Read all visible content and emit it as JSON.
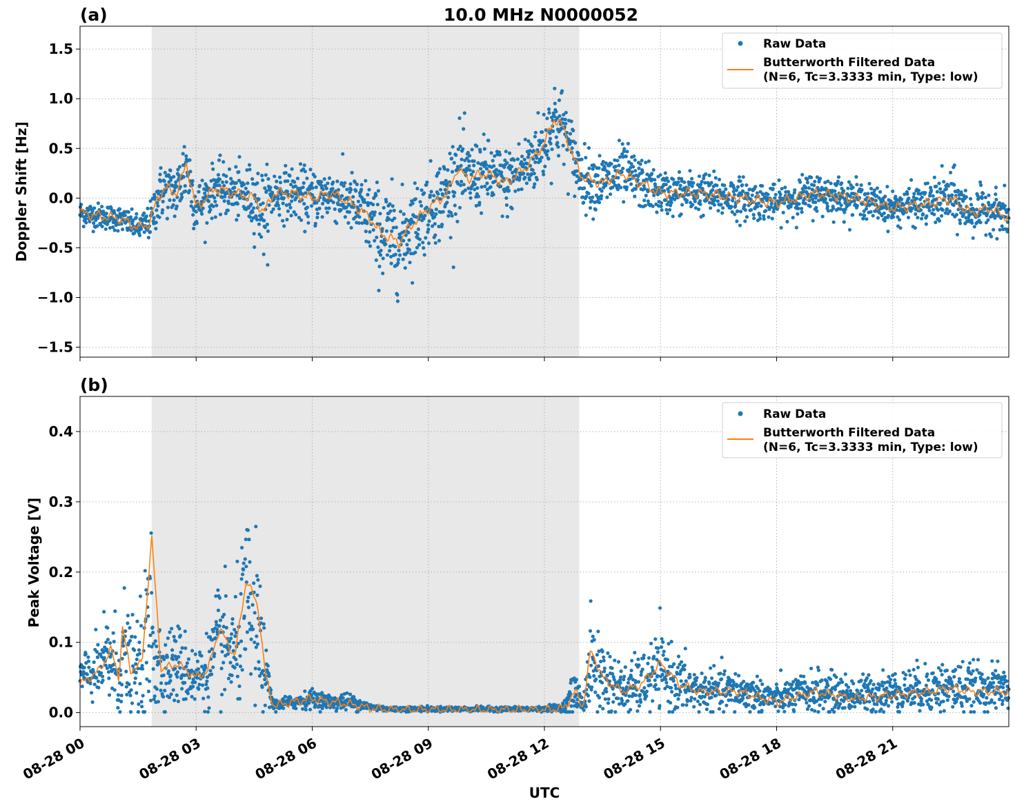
{
  "chart_data": [
    {
      "type": "scatter",
      "panel_label": "(a)",
      "title": "10.0 MHz N0000052",
      "xlabel": "",
      "ylabel": "Doppler Shift [Hz]",
      "x_range_hours": [
        0,
        24
      ],
      "ylim": [
        -1.6,
        1.73
      ],
      "yticks": [
        -1.5,
        -1.0,
        -0.5,
        0.0,
        0.5,
        1.0,
        1.5
      ],
      "ytick_labels": [
        "−1.5",
        "−1.0",
        "−0.5",
        "0.0",
        "0.5",
        "1.0",
        "1.5"
      ],
      "shaded_region_hours": [
        1.85,
        12.9
      ],
      "grid": true,
      "legend_position": "top-right",
      "series": [
        {
          "name": "Raw Data",
          "kind": "scatter",
          "color": "#1f77b4",
          "x_hours": [
            0,
            0.5,
            1.0,
            1.5,
            1.8,
            2.0,
            2.2,
            2.5,
            2.75,
            3.0,
            3.5,
            4.0,
            4.5,
            4.75,
            5.0,
            5.5,
            6.0,
            6.5,
            7.0,
            7.5,
            7.75,
            8.0,
            8.25,
            8.5,
            9.0,
            9.5,
            9.75,
            10.0,
            10.5,
            11.0,
            11.5,
            12.0,
            12.25,
            12.5,
            12.75,
            13.0,
            13.5,
            14.0,
            14.5,
            15.0,
            16.0,
            17.0,
            18.0,
            19.0,
            20.0,
            21.0,
            22.0,
            22.5,
            23.0,
            23.5,
            24.0
          ],
          "center": [
            -0.15,
            -0.18,
            -0.2,
            -0.3,
            -0.25,
            0.0,
            0.1,
            0.05,
            0.35,
            -0.1,
            0.1,
            0.05,
            0.0,
            -0.15,
            0.05,
            0.05,
            0.0,
            0.05,
            -0.05,
            -0.2,
            -0.35,
            -0.4,
            -0.45,
            -0.3,
            -0.1,
            0.05,
            0.3,
            0.2,
            0.25,
            0.15,
            0.3,
            0.55,
            0.8,
            0.7,
            0.4,
            0.2,
            0.15,
            0.25,
            0.15,
            0.05,
            0.05,
            0.0,
            -0.05,
            0.05,
            0.0,
            -0.1,
            -0.05,
            0.0,
            -0.15,
            -0.1,
            -0.2
          ],
          "spread": [
            0.15,
            0.15,
            0.15,
            0.15,
            0.2,
            0.35,
            0.3,
            0.35,
            0.5,
            0.3,
            0.3,
            0.3,
            0.4,
            0.5,
            0.3,
            0.3,
            0.35,
            0.3,
            0.35,
            0.45,
            0.55,
            0.6,
            0.55,
            0.5,
            0.45,
            0.5,
            0.55,
            0.45,
            0.4,
            0.4,
            0.4,
            0.45,
            0.5,
            0.45,
            0.4,
            0.35,
            0.35,
            0.35,
            0.3,
            0.25,
            0.25,
            0.25,
            0.2,
            0.25,
            0.2,
            0.2,
            0.25,
            0.35,
            0.25,
            0.25,
            0.25
          ]
        },
        {
          "name": "Butterworth Filtered Data\n(N=6, Tc=3.3333 min, Type: low)",
          "kind": "line",
          "color": "#ff7f0e",
          "x_hours": [
            0,
            0.5,
            1.0,
            1.5,
            1.8,
            2.0,
            2.2,
            2.5,
            2.75,
            3.0,
            3.5,
            4.0,
            4.5,
            4.75,
            5.0,
            5.5,
            6.0,
            6.5,
            7.0,
            7.5,
            7.75,
            8.0,
            8.25,
            8.5,
            9.0,
            9.5,
            9.75,
            10.0,
            10.5,
            11.0,
            11.5,
            12.0,
            12.25,
            12.5,
            12.75,
            13.0,
            13.5,
            14.0,
            14.5,
            15.0,
            16.0,
            17.0,
            18.0,
            19.0,
            20.0,
            21.0,
            22.0,
            22.5,
            23.0,
            23.5,
            24.0
          ],
          "values": [
            -0.15,
            -0.18,
            -0.2,
            -0.3,
            -0.25,
            0.0,
            0.1,
            0.05,
            0.35,
            -0.1,
            0.1,
            0.05,
            0.0,
            -0.15,
            0.05,
            0.05,
            0.0,
            0.05,
            -0.05,
            -0.2,
            -0.35,
            -0.4,
            -0.45,
            -0.3,
            -0.1,
            0.05,
            0.3,
            0.2,
            0.25,
            0.15,
            0.3,
            0.55,
            0.8,
            0.7,
            0.4,
            0.2,
            0.15,
            0.25,
            0.15,
            0.05,
            0.05,
            0.0,
            -0.05,
            0.05,
            0.0,
            -0.1,
            -0.05,
            0.0,
            -0.15,
            -0.1,
            -0.2
          ]
        }
      ]
    },
    {
      "type": "scatter",
      "panel_label": "(b)",
      "title": "",
      "xlabel": "UTC",
      "ylabel": "Peak Voltage [V]",
      "x_range_hours": [
        0,
        24
      ],
      "ylim": [
        -0.02,
        0.45
      ],
      "yticks": [
        0.0,
        0.1,
        0.2,
        0.3,
        0.4
      ],
      "ytick_labels": [
        "0.0",
        "0.1",
        "0.2",
        "0.3",
        "0.4"
      ],
      "shaded_region_hours": [
        1.85,
        12.9
      ],
      "grid": true,
      "legend_position": "top-right",
      "xticks_hours": [
        0,
        3,
        6,
        9,
        12,
        15,
        18,
        21
      ],
      "xtick_labels": [
        "08-28 00",
        "08-28 03",
        "08-28 06",
        "08-28 09",
        "08-28 12",
        "08-28 15",
        "08-28 18",
        "08-28 21"
      ],
      "series": [
        {
          "name": "Raw Data",
          "kind": "scatter",
          "color": "#1f77b4",
          "x_hours": [
            0,
            0.5,
            0.8,
            1.0,
            1.1,
            1.3,
            1.6,
            1.85,
            2.1,
            2.5,
            3.0,
            3.3,
            3.6,
            4.0,
            4.3,
            4.6,
            4.8,
            5.0,
            5.5,
            6.0,
            6.5,
            7.0,
            7.5,
            8.0,
            9.0,
            10.0,
            11.0,
            12.0,
            12.5,
            12.8,
            13.0,
            13.2,
            13.5,
            14.0,
            14.5,
            15.0,
            15.5,
            16.0,
            17.0,
            18.0,
            19.0,
            20.0,
            21.0,
            22.0,
            22.5,
            23.0,
            24.0
          ],
          "center": [
            0.05,
            0.06,
            0.08,
            0.05,
            0.09,
            0.06,
            0.06,
            0.12,
            0.06,
            0.07,
            0.05,
            0.06,
            0.1,
            0.08,
            0.15,
            0.11,
            0.05,
            0.01,
            0.015,
            0.02,
            0.015,
            0.015,
            0.008,
            0.005,
            0.005,
            0.005,
            0.005,
            0.005,
            0.008,
            0.03,
            0.01,
            0.07,
            0.05,
            0.03,
            0.04,
            0.06,
            0.04,
            0.03,
            0.03,
            0.02,
            0.03,
            0.025,
            0.03,
            0.035,
            0.035,
            0.035,
            0.035
          ],
          "spread": [
            0.04,
            0.05,
            0.1,
            0.07,
            0.12,
            0.07,
            0.1,
            0.2,
            0.06,
            0.07,
            0.05,
            0.06,
            0.1,
            0.09,
            0.15,
            0.13,
            0.05,
            0.01,
            0.012,
            0.015,
            0.012,
            0.015,
            0.006,
            0.004,
            0.004,
            0.004,
            0.004,
            0.004,
            0.008,
            0.04,
            0.01,
            0.08,
            0.07,
            0.04,
            0.05,
            0.06,
            0.05,
            0.035,
            0.035,
            0.025,
            0.035,
            0.03,
            0.035,
            0.04,
            0.045,
            0.04,
            0.035
          ]
        },
        {
          "name": "Butterworth Filtered Data\n(N=6, Tc=3.3333 min, Type: low)",
          "kind": "line",
          "color": "#ff7f0e",
          "x_hours": [
            0,
            0.5,
            0.8,
            1.0,
            1.1,
            1.3,
            1.6,
            1.85,
            2.1,
            2.5,
            3.0,
            3.3,
            3.6,
            4.0,
            4.3,
            4.6,
            4.8,
            5.0,
            5.5,
            6.0,
            6.5,
            7.0,
            7.5,
            8.0,
            9.0,
            10.0,
            11.0,
            12.0,
            12.5,
            12.8,
            13.0,
            13.2,
            13.5,
            14.0,
            14.5,
            15.0,
            15.5,
            16.0,
            17.0,
            18.0,
            19.0,
            20.0,
            21.0,
            22.0,
            22.5,
            23.0,
            24.0
          ],
          "values": [
            0.04,
            0.06,
            0.09,
            0.05,
            0.12,
            0.06,
            0.07,
            0.25,
            0.06,
            0.07,
            0.05,
            0.06,
            0.12,
            0.08,
            0.19,
            0.15,
            0.05,
            0.01,
            0.015,
            0.02,
            0.015,
            0.012,
            0.006,
            0.004,
            0.004,
            0.004,
            0.004,
            0.004,
            0.006,
            0.03,
            0.008,
            0.09,
            0.05,
            0.03,
            0.04,
            0.07,
            0.04,
            0.03,
            0.03,
            0.015,
            0.03,
            0.02,
            0.025,
            0.03,
            0.035,
            0.03,
            0.03
          ]
        }
      ]
    }
  ],
  "legend": {
    "raw_label": "Raw Data",
    "filtered_line1": "Butterworth Filtered Data",
    "filtered_line2": "(N=6, Tc=3.3333 min, Type: low)"
  },
  "colors": {
    "raw": "#1f77b4",
    "filtered": "#ff7f0e",
    "shade": "#e8e8e8"
  }
}
